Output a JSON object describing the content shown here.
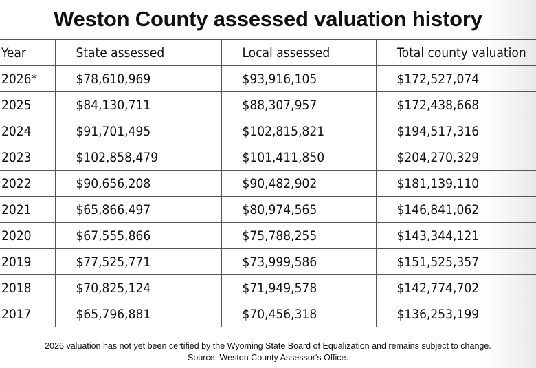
{
  "header": {
    "title": "Weston County assessed valuation history"
  },
  "table": {
    "columns": [
      "Year",
      "State assessed",
      "Local assessed",
      "Total county valuation"
    ],
    "rows": [
      [
        "2026*",
        "$78,610,969",
        "$93,916,105",
        "$172,527,074"
      ],
      [
        "2025",
        "$84,130,711",
        "$88,307,957",
        "$172,438,668"
      ],
      [
        "2024",
        "$91,701,495",
        "$102,815,821",
        "$194,517,316"
      ],
      [
        "2023",
        "$102,858,479",
        "$101,411,850",
        "$204,270,329"
      ],
      [
        "2022",
        "$90,656,208",
        "$90,482,902",
        "$181,139,110"
      ],
      [
        "2021",
        "$65,866,497",
        "$80,974,565",
        "$146,841,062"
      ],
      [
        "2020",
        "$67,555,866",
        "$75,788,255",
        "$143,344,121"
      ],
      [
        "2019",
        "$77,525,771",
        "$73,999,586",
        "$151,525,357"
      ],
      [
        "2018",
        "$70,825,124",
        "$71,949,578",
        "$142,774,702"
      ],
      [
        "2017",
        "$65,796,881",
        "$70,456,318",
        "$136,253,199"
      ]
    ]
  },
  "footer": {
    "note": "2026 valuation has not yet been certified by the Wyoming State Board of Equalization and remains subject to change.",
    "source": "Source: Weston County Assessor's Office."
  }
}
